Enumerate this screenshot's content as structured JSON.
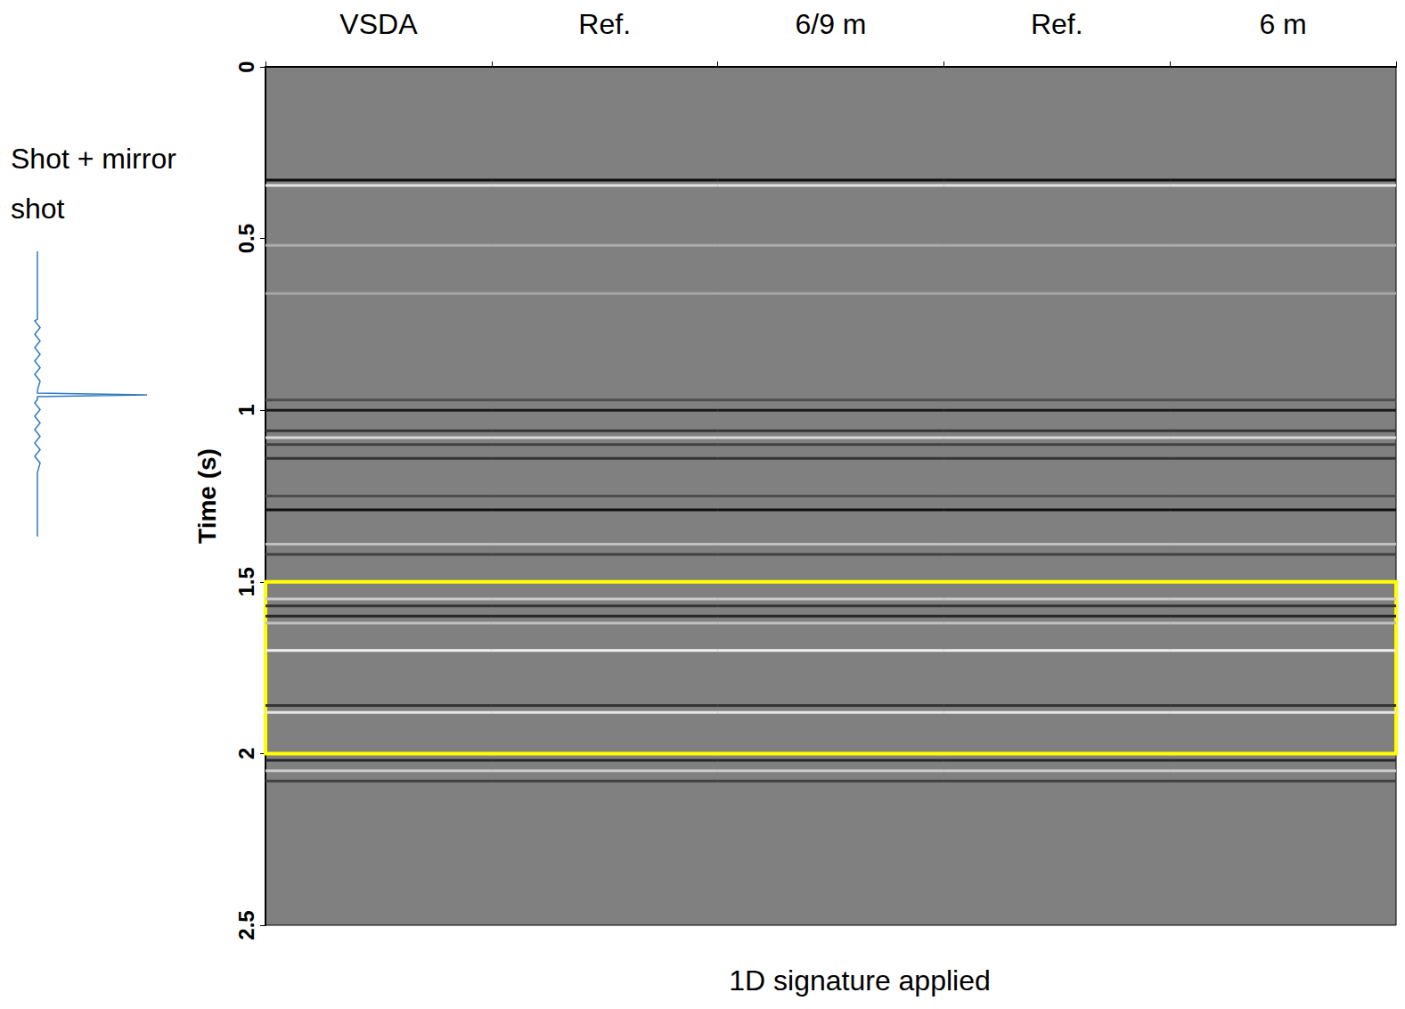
{
  "chart_data": {
    "type": "seismic",
    "panels": [
      "VSDA",
      "Ref.",
      "6/9 m",
      "Ref.",
      "6 m"
    ],
    "y_label": "Time (s)",
    "ylim": [
      0,
      2.5
    ],
    "yticks": [
      0,
      0.5,
      1,
      1.5,
      2,
      2.5
    ],
    "events": [
      {
        "time": 0.33,
        "amplitude": -0.9
      },
      {
        "time": 0.345,
        "amplitude": 0.8
      },
      {
        "time": 0.52,
        "amplitude": 0.35
      },
      {
        "time": 0.66,
        "amplitude": 0.3
      },
      {
        "time": 0.97,
        "amplitude": -0.4
      },
      {
        "time": 1.0,
        "amplitude": -0.8
      },
      {
        "time": 1.06,
        "amplitude": -0.6
      },
      {
        "time": 1.08,
        "amplitude": 0.7
      },
      {
        "time": 1.1,
        "amplitude": -0.5
      },
      {
        "time": 1.14,
        "amplitude": -0.6
      },
      {
        "time": 1.25,
        "amplitude": -0.4
      },
      {
        "time": 1.29,
        "amplitude": -0.9
      },
      {
        "time": 1.39,
        "amplitude": 0.5
      },
      {
        "time": 1.42,
        "amplitude": -0.5
      },
      {
        "time": 1.55,
        "amplitude": 0.6
      },
      {
        "time": 1.57,
        "amplitude": -0.6
      },
      {
        "time": 1.6,
        "amplitude": -0.7
      },
      {
        "time": 1.62,
        "amplitude": 0.5
      },
      {
        "time": 1.7,
        "amplitude": 0.9
      },
      {
        "time": 1.86,
        "amplitude": -0.6
      },
      {
        "time": 1.88,
        "amplitude": 0.8
      },
      {
        "time": 2.02,
        "amplitude": -0.7
      },
      {
        "time": 2.05,
        "amplitude": 0.6
      },
      {
        "time": 2.08,
        "amplitude": -0.5
      }
    ],
    "highlight_window": [
      1.5,
      2.0
    ],
    "side_label": "Shot + mirror shot",
    "bottom_label": "1D signature applied"
  }
}
